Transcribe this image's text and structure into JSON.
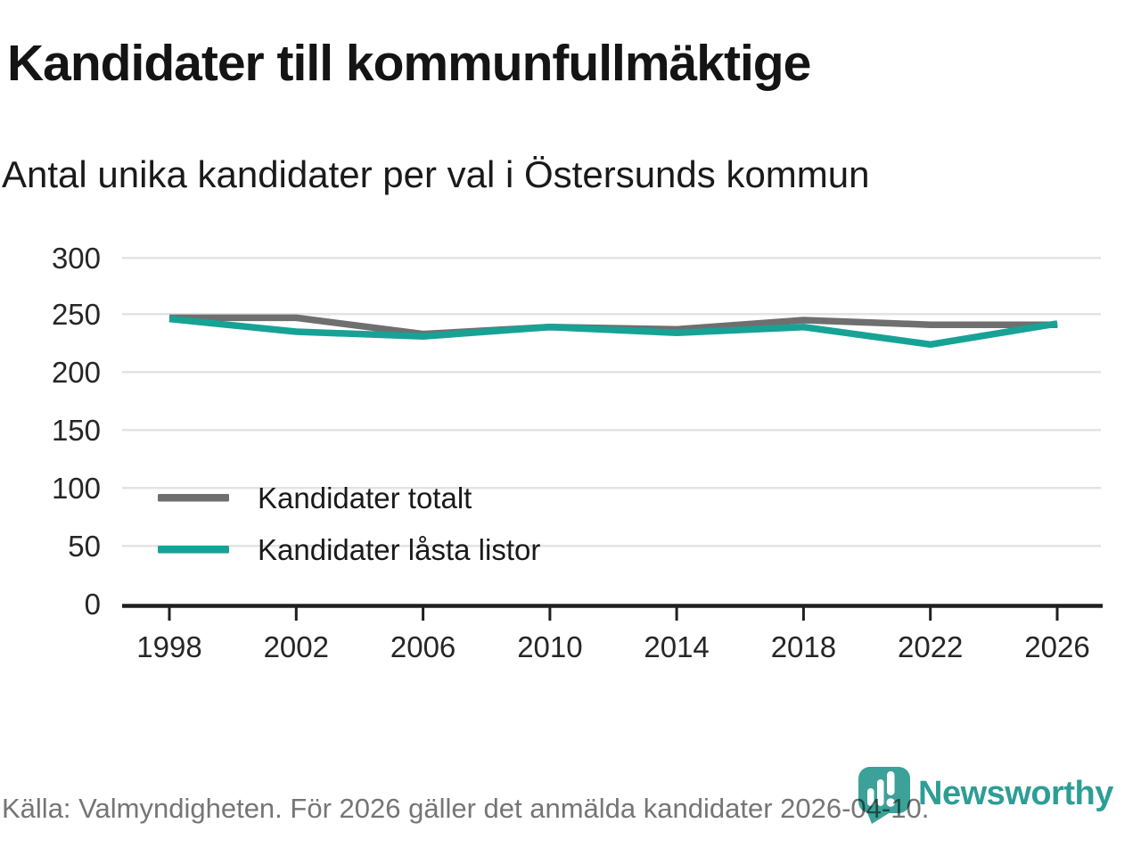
{
  "title": "Kandidater till kommunfullmäktige",
  "subtitle": "Antal unika kandidater per val i Östersunds kommun",
  "footer": {
    "source_text": "Källa: Valmyndigheten. För 2026 gäller det anmälda kandidater 2026-04-10."
  },
  "branding": {
    "logo_text": "Newsworthy",
    "logo_icon": "newsworthy-bubble-barchart-icon",
    "logo_color": "#3ba199",
    "wordmark_color": "#2d9e96"
  },
  "chart_data": {
    "type": "line",
    "title": "Kandidater till kommunfullmäktige",
    "subtitle": "Antal unika kandidater per val i Östersunds kommun",
    "categories": [
      "1998",
      "2002",
      "2006",
      "2010",
      "2014",
      "2018",
      "2022",
      "2026"
    ],
    "yticks": [
      "300",
      "250",
      "200",
      "150",
      "100",
      "50",
      "0"
    ],
    "ylim": [
      0,
      300
    ],
    "xlabel": "",
    "ylabel": "",
    "grid": "horizontal",
    "legend_position": "inside-bottom-left",
    "series": [
      {
        "name": "Kandidater totalt",
        "color": "#6f6f6f",
        "values": [
          247,
          247,
          233,
          239,
          237,
          245,
          241,
          241
        ]
      },
      {
        "name": "Kandidater låsta listor",
        "color": "#17a296",
        "values": [
          246,
          235,
          231,
          239,
          234,
          239,
          224,
          242
        ]
      }
    ]
  }
}
